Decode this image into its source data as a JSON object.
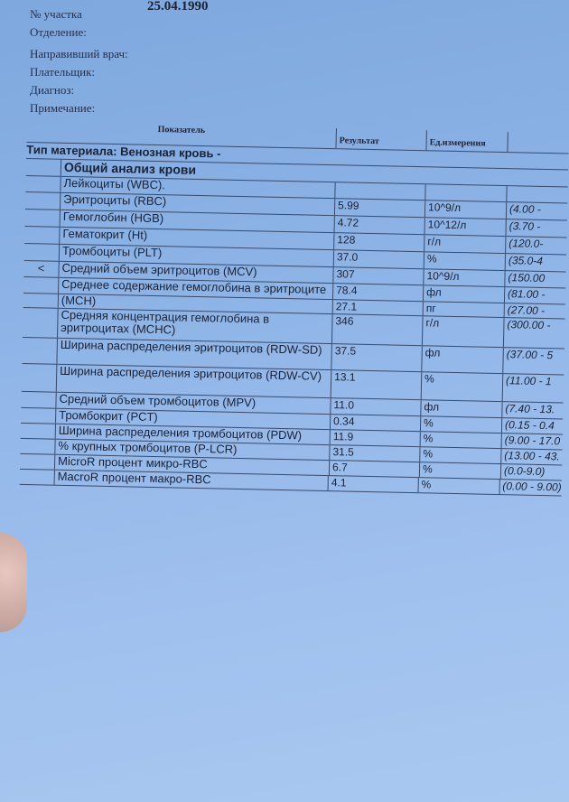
{
  "header": {
    "date": "25.04.1990",
    "fields": [
      "№ участка",
      "Отделение:",
      "Направивший врач:",
      "Плательщик:",
      "Диагноз:",
      "Примечание:"
    ]
  },
  "table": {
    "columns": {
      "indicator": "Показатель",
      "result": "Результат",
      "unit": "Ед.измерения"
    },
    "material": "Тип материала: Венозная кровь  -",
    "section": "Общий анализ крови",
    "rows": [
      {
        "flag": "",
        "name": "Лейкоциты (WBC).",
        "result": "",
        "unit": "",
        "ref": ""
      },
      {
        "flag": "",
        "name": "Эритроциты (RBC)",
        "result": "5.99",
        "unit": "10^9/л",
        "ref": "(4.00 -"
      },
      {
        "flag": "",
        "name": "Гемоглобин (HGB)",
        "result": "4.72",
        "unit": "10^12/л",
        "ref": "(3.70 -"
      },
      {
        "flag": "",
        "name": "Гематокрит (Ht)",
        "result": "128",
        "unit": "г/л",
        "ref": "(120.0-"
      },
      {
        "flag": "",
        "name": "Тромбоциты (PLT)",
        "result": "37.0",
        "unit": "%",
        "ref": "(35.0-4"
      },
      {
        "flag": "<",
        "name": "Средний объем эритроцитов (MCV)",
        "result": "307",
        "unit": "10^9/л",
        "ref": "(150.00"
      },
      {
        "flag": "",
        "name": "Среднее содержание гемоглобина в эритроците",
        "result": "78.4",
        "unit": "фл",
        "ref": "(81.00 -"
      },
      {
        "flag": "",
        "name": "(MCH)",
        "result": "27.1",
        "unit": "пг",
        "ref": "(27.00 -"
      },
      {
        "flag": "",
        "name": "Средняя концентрация гемоглобина в эритроцитах (MCHC)",
        "result": "346",
        "unit": "г/л",
        "ref": "(300.00 -"
      },
      {
        "flag": "",
        "name": "Ширина распределения эритроцитов (RDW-SD)",
        "result": "37.5",
        "unit": "фл",
        "ref": "(37.00 - 5"
      },
      {
        "flag": "",
        "name": "Ширина распределения эритроцитов (RDW-CV)",
        "result": "13.1",
        "unit": "%",
        "ref": "(11.00 - 1"
      },
      {
        "flag": "",
        "name": "Средний объем тромбоцитов (MPV)",
        "result": "11.0",
        "unit": "фл",
        "ref": "(7.40 - 13."
      },
      {
        "flag": "",
        "name": "Тромбокрит (PCT)",
        "result": "0.34",
        "unit": "%",
        "ref": "(0.15 - 0.4"
      },
      {
        "flag": "",
        "name": "Ширина распределения тромбоцитов (PDW)",
        "result": "11.9",
        "unit": "%",
        "ref": "(9.00 - 17.0"
      },
      {
        "flag": "",
        "name": "% крупных тромбоцитов (P-LCR)",
        "result": "31.5",
        "unit": "%",
        "ref": "(13.00 - 43."
      },
      {
        "flag": "",
        "name": "MicroR процент микро-RBC",
        "result": "6.7",
        "unit": "%",
        "ref": "(0.0-9.0)"
      },
      {
        "flag": "",
        "name": "MacroR процент макро-RBC",
        "result": "4.1",
        "unit": "%",
        "ref": "(0.00 - 9.00)"
      }
    ]
  },
  "colors": {
    "paper": "#8db3e6",
    "ink": "#1a2236"
  }
}
